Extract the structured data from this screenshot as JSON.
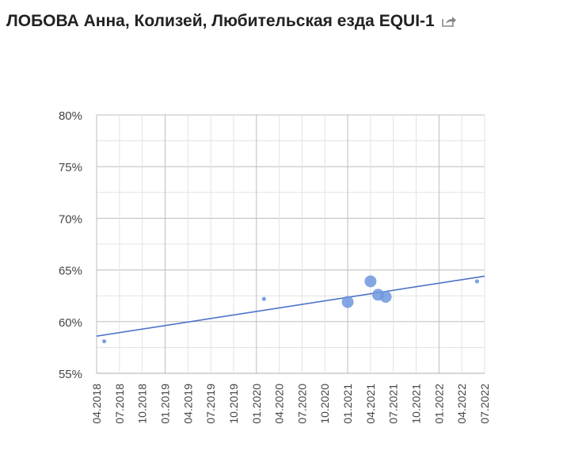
{
  "header": {
    "title": "ЛОБОВА Анна, Колизей, Любительская езда EQUI-1",
    "share_icon": "share-icon"
  },
  "colors": {
    "point": "#6f97df",
    "trendline": "#4c74c9",
    "grid_major": "#bdbdbd",
    "grid_minor": "#e3e3e3",
    "axis_text": "#444444"
  },
  "chart_data": {
    "type": "scatter",
    "title": "",
    "xlabel": "",
    "ylabel": "",
    "x_tick_labels": [
      "04.2018",
      "07.2018",
      "10.2018",
      "01.2019",
      "04.2019",
      "07.2019",
      "10.2019",
      "01.2020",
      "04.2020",
      "07.2020",
      "10.2020",
      "01.2021",
      "04.2021",
      "07.2021",
      "10.2021",
      "01.2022",
      "04.2022",
      "07.2022"
    ],
    "xlim": [
      "2018-04",
      "2022-07"
    ],
    "y_tick_labels": [
      "55%",
      "60%",
      "65%",
      "70%",
      "75%",
      "80%"
    ],
    "ylim": [
      55,
      80
    ],
    "grid": true,
    "points": [
      {
        "date": "2018-05",
        "y": 58.1,
        "size": "small"
      },
      {
        "date": "2020-02",
        "y": 62.2,
        "size": "small"
      },
      {
        "date": "2021-01",
        "y": 61.9,
        "size": "large"
      },
      {
        "date": "2021-04",
        "y": 63.9,
        "size": "large"
      },
      {
        "date": "2021-05",
        "y": 62.6,
        "size": "large"
      },
      {
        "date": "2021-06",
        "y": 62.4,
        "size": "large"
      },
      {
        "date": "2022-06",
        "y": 63.9,
        "size": "small"
      }
    ],
    "trendline": {
      "start": {
        "date": "2018-04",
        "y": 58.6
      },
      "end": {
        "date": "2022-07",
        "y": 64.4
      }
    }
  }
}
